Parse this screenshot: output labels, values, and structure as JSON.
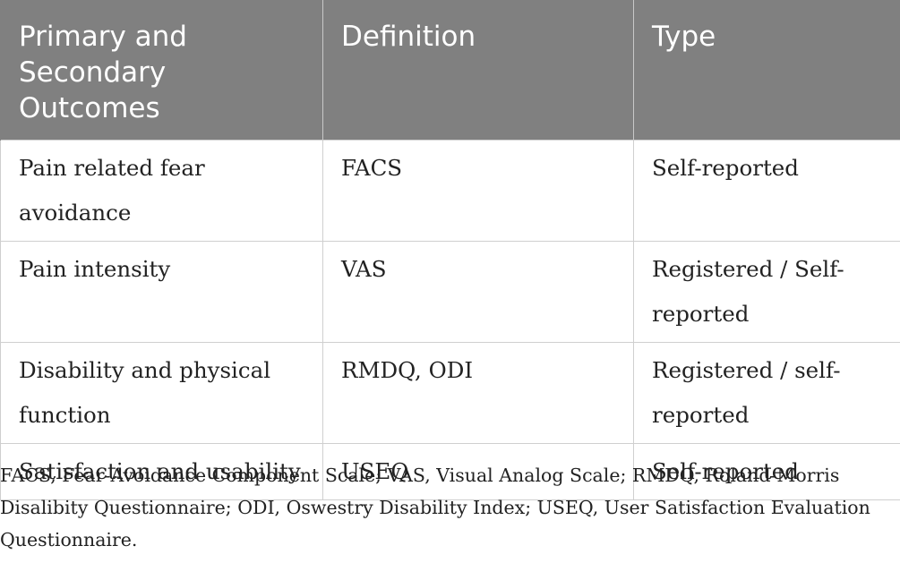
{
  "table": {
    "headers": [
      "Primary and Secondary Outcomes",
      "Definition",
      "Type"
    ],
    "rows": [
      {
        "outcome": "Pain related fear avoidance",
        "definition": "FACS",
        "type": "Self-reported"
      },
      {
        "outcome": "Pain intensity",
        "definition": "VAS",
        "type": "Registered / Self-reported"
      },
      {
        "outcome": "Disability and physical function",
        "definition": "RMDQ, ODI",
        "type": "Registered / self-reported"
      },
      {
        "outcome": "Satisfaction and usability",
        "definition": "USEQ",
        "type": "Self-reported"
      }
    ]
  },
  "footnote": "FACS, Fear-Avoidance Component Scale; VAS, Visual Analog Scale; RMDQ, Roland-Morris Disalibity Questionnaire; ODI, Oswestry Disability Index; USEQ, User Satisfaction Evaluation Questionnaire.",
  "colors": {
    "header_bg": "#808080",
    "header_text": "#ffffff",
    "border": "#cfcfcf"
  }
}
